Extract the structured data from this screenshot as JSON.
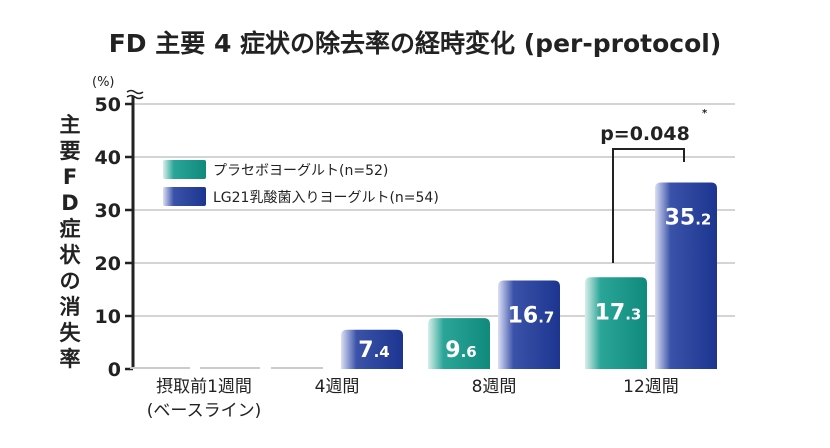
{
  "chart_data": {
    "type": "bar",
    "title": "FD 主要 4 症状の除去率の経時変化 (per-protocol)",
    "ylabel": "主要FD症状の消失率",
    "yunit": "(%)",
    "ylim": [
      0,
      50
    ],
    "yticks": [
      "0",
      "10",
      "20",
      "30",
      "40",
      "50"
    ],
    "grid": true,
    "legend_placement": "top-left",
    "categories": [
      [
        "摂取前1週間",
        "(ベースライン)"
      ],
      [
        "4週間"
      ],
      [
        "8週間"
      ],
      [
        "12週間"
      ]
    ],
    "series": [
      {
        "name": "プラセボヨーグルト(n=52)",
        "color": "#14978a",
        "values": [
          0,
          0,
          9.6,
          17.3
        ],
        "labels": [
          "",
          "",
          "9.6",
          "17.3"
        ]
      },
      {
        "name": "LG21乳酸菌入りヨーグルト(n=54)",
        "color": "#1f3a94",
        "values": [
          0,
          7.4,
          16.7,
          35.2
        ],
        "labels": [
          "",
          "7.4",
          "16.7",
          "35.2"
        ]
      }
    ],
    "annotations": [
      {
        "text": "p=0.048",
        "marker": "*",
        "category": "12週間"
      }
    ]
  }
}
